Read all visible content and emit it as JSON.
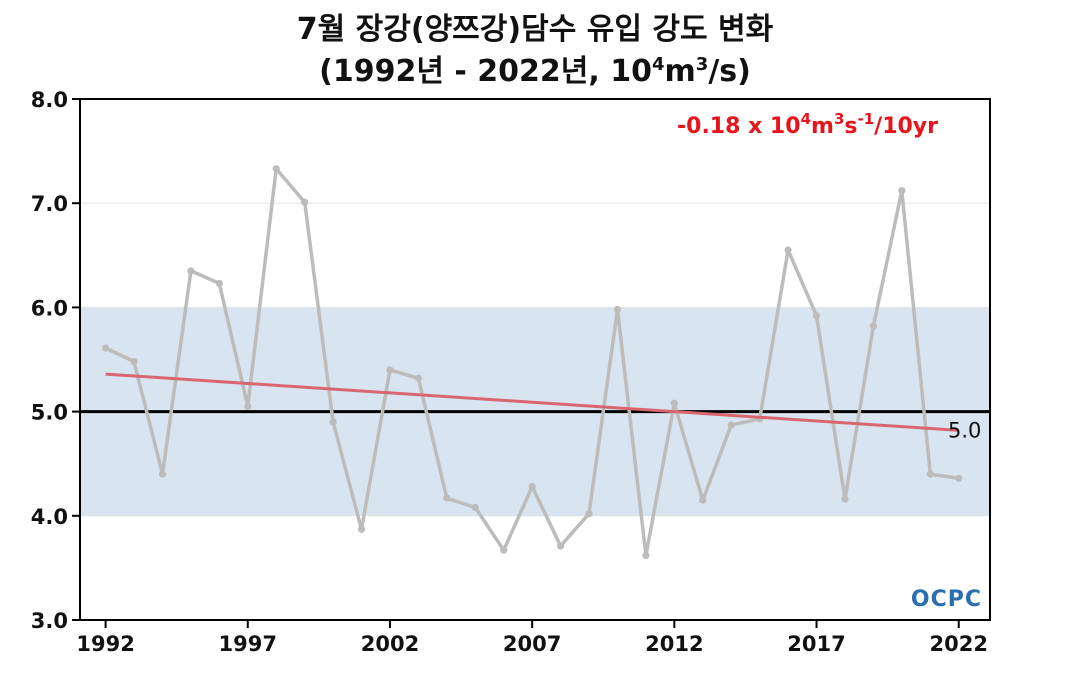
{
  "chart_data": {
    "type": "line",
    "title_line1": "7월 장강(양쯔강)담수 유입 강도 변화",
    "title_line2_prefix": "(1992년 - 2022년, 10",
    "title_line2_sup1": "4",
    "title_line2_mid": "m",
    "title_line2_sup2": "3",
    "title_line2_suffix": "/s)",
    "xlabel": "",
    "ylabel": "",
    "xlim": [
      1991.1,
      2023.1
    ],
    "ylim": [
      3.0,
      8.0
    ],
    "x_ticks": [
      1992,
      1997,
      2002,
      2007,
      2012,
      2017,
      2022
    ],
    "y_ticks": [
      3.0,
      4.0,
      5.0,
      6.0,
      7.0,
      8.0
    ],
    "y_tick_labels": [
      "3.0",
      "4.0",
      "5.0",
      "6.0",
      "7.0",
      "8.0"
    ],
    "grid": "horizontal",
    "normal_band": [
      4.0,
      6.0
    ],
    "reference_line": {
      "value": 5.0,
      "label": "5.0"
    },
    "series": [
      {
        "x": [
          1992,
          1993,
          1994,
          1995,
          1996,
          1997,
          1998,
          1999,
          2000,
          2001,
          2002,
          2003,
          2004,
          2005,
          2006,
          2007,
          2008,
          2009,
          2010,
          2011,
          2012,
          2013,
          2014,
          2015,
          2016,
          2017,
          2018,
          2019,
          2020,
          2021,
          2022
        ],
        "values": [
          5.61,
          5.48,
          4.4,
          6.35,
          6.23,
          5.05,
          7.33,
          7.01,
          4.9,
          3.87,
          5.4,
          5.32,
          4.17,
          4.08,
          3.67,
          4.28,
          3.71,
          4.02,
          5.98,
          3.62,
          5.08,
          4.15,
          4.87,
          4.93,
          6.55,
          5.92,
          4.16,
          5.82,
          7.12,
          4.4,
          4.36
        ],
        "color": "#bcbcbc"
      }
    ],
    "trend": {
      "x": [
        1992,
        2022
      ],
      "values": [
        5.36,
        4.82
      ],
      "color": "#d9666f",
      "label_value": "-0.18 x 10",
      "label_sup1": "4",
      "label_mid1": "m",
      "label_sup2": "3",
      "label_mid2": "s",
      "label_sup3": "-1",
      "label_end": "/10yr"
    },
    "colors": {
      "band": "#d8e4f0",
      "reference": "#000000",
      "grid": "#e3e3e3",
      "annotation": "#e8141b"
    }
  },
  "logo": {
    "text": "OCPC"
  }
}
